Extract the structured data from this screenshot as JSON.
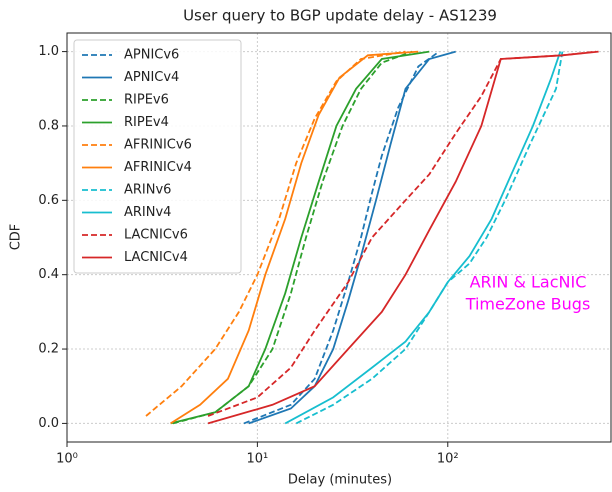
{
  "chart_data": {
    "type": "line",
    "title": "User query to BGP update delay - AS1239",
    "x_label": "Delay (minutes)",
    "y_label": "CDF",
    "log_x": true,
    "grid": true,
    "legend": "upper left",
    "xlim": [
      1,
      720
    ],
    "ylim": [
      -0.05,
      1.05
    ],
    "xticks": [
      {
        "value": 1,
        "label": "10⁰"
      },
      {
        "value": 10,
        "label": "10¹"
      },
      {
        "value": 100,
        "label": "10²"
      }
    ],
    "yticks": [
      {
        "value": 0,
        "label": "0.0"
      },
      {
        "value": 0.2,
        "label": "0.2"
      },
      {
        "value": 0.4,
        "label": "0.4"
      },
      {
        "value": 0.6,
        "label": "0.6"
      },
      {
        "value": 0.8,
        "label": "0.8"
      },
      {
        "value": 1,
        "label": "1.0"
      }
    ],
    "annotation": {
      "lines": [
        "ARIN & LacNIC",
        "TimeZone Bugs"
      ],
      "color": "#ff00ff"
    },
    "series": [
      {
        "name": "APNICv6",
        "color": "#1f77b4",
        "dashed": true,
        "x": [
          8.5,
          15,
          20,
          25,
          30,
          35,
          40,
          45,
          55,
          70,
          90
        ],
        "values": [
          0,
          0.05,
          0.12,
          0.25,
          0.38,
          0.5,
          0.62,
          0.72,
          0.85,
          0.96,
          1.0
        ]
      },
      {
        "name": "APNICv4",
        "color": "#1f77b4",
        "dashed": false,
        "x": [
          9,
          15,
          20,
          25,
          30,
          35,
          42,
          50,
          60,
          80,
          110
        ],
        "values": [
          0,
          0.04,
          0.1,
          0.2,
          0.33,
          0.45,
          0.6,
          0.75,
          0.9,
          0.98,
          1.0
        ]
      },
      {
        "name": "RIPEv6",
        "color": "#2ca02c",
        "dashed": true,
        "x": [
          3.6,
          6,
          9,
          12,
          15,
          18,
          22,
          28,
          35,
          45,
          65
        ],
        "values": [
          0,
          0.03,
          0.1,
          0.2,
          0.35,
          0.5,
          0.65,
          0.8,
          0.9,
          0.97,
          1.0
        ]
      },
      {
        "name": "RIPEv4",
        "color": "#2ca02c",
        "dashed": false,
        "x": [
          3.5,
          6,
          9,
          11,
          14,
          17,
          21,
          26,
          33,
          45,
          80
        ],
        "values": [
          0,
          0.03,
          0.1,
          0.2,
          0.35,
          0.5,
          0.65,
          0.8,
          0.9,
          0.98,
          1.0
        ]
      },
      {
        "name": "AFRINICv6",
        "color": "#ff7f0e",
        "dashed": true,
        "x": [
          2.6,
          4,
          6,
          8,
          10,
          13,
          16,
          20,
          26,
          35,
          60
        ],
        "values": [
          0.02,
          0.1,
          0.2,
          0.3,
          0.4,
          0.55,
          0.7,
          0.82,
          0.92,
          0.98,
          1.0
        ]
      },
      {
        "name": "AFRINICv4",
        "color": "#ff7f0e",
        "dashed": false,
        "x": [
          3.5,
          5,
          7,
          9,
          11,
          14,
          17,
          21,
          27,
          38,
          70
        ],
        "values": [
          0,
          0.05,
          0.12,
          0.25,
          0.4,
          0.55,
          0.7,
          0.83,
          0.93,
          0.99,
          1.0
        ]
      },
      {
        "name": "ARINv6",
        "color": "#17becf",
        "dashed": true,
        "x": [
          16,
          25,
          40,
          60,
          80,
          100,
          130,
          160,
          200,
          270,
          370,
          400
        ],
        "values": [
          0,
          0.05,
          0.12,
          0.2,
          0.3,
          0.38,
          0.43,
          0.5,
          0.6,
          0.75,
          0.9,
          1.0
        ]
      },
      {
        "name": "ARINv4",
        "color": "#17becf",
        "dashed": false,
        "x": [
          14,
          25,
          40,
          60,
          80,
          100,
          130,
          170,
          220,
          280,
          350,
          390
        ],
        "values": [
          0,
          0.07,
          0.15,
          0.22,
          0.3,
          0.38,
          0.45,
          0.55,
          0.68,
          0.8,
          0.93,
          1.0
        ]
      },
      {
        "name": "LACNICv6",
        "color": "#d62728",
        "dashed": true,
        "x": [
          5.5,
          10,
          15,
          20,
          30,
          40,
          60,
          80,
          110,
          150,
          190,
          400,
          600
        ],
        "values": [
          0.02,
          0.07,
          0.15,
          0.25,
          0.38,
          0.5,
          0.6,
          0.67,
          0.78,
          0.88,
          0.98,
          0.99,
          1.0
        ]
      },
      {
        "name": "LACNICv4",
        "color": "#d62728",
        "dashed": false,
        "x": [
          5.5,
          12,
          20,
          30,
          45,
          60,
          80,
          110,
          150,
          190,
          400,
          620
        ],
        "values": [
          0,
          0.05,
          0.1,
          0.2,
          0.3,
          0.4,
          0.52,
          0.65,
          0.8,
          0.98,
          0.99,
          1.0
        ]
      }
    ]
  }
}
